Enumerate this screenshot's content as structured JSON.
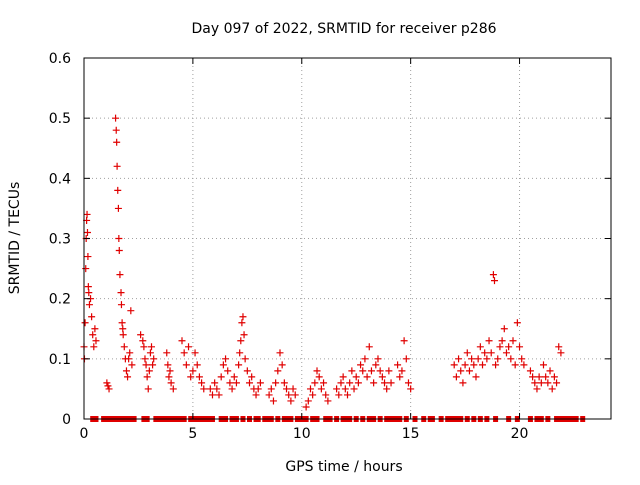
{
  "chart_data": {
    "type": "scatter",
    "title": "Day 097 of 2022, SRMTID for receiver p286",
    "xlabel": "GPS time / hours",
    "ylabel": "SRMTID / TECUs",
    "xlim": [
      0,
      24.2
    ],
    "ylim": [
      0,
      0.6
    ],
    "xticks": [
      0,
      5,
      10,
      15,
      20
    ],
    "yticks": [
      0,
      0.1,
      0.2,
      0.3,
      0.4,
      0.5,
      0.6
    ],
    "xtick_labels": [
      "0",
      "5",
      "10",
      "15",
      "20"
    ],
    "ytick_labels": [
      "0",
      "0.1",
      "0.2",
      "0.3",
      "0.4",
      "0.5",
      "0.6"
    ],
    "grid": true,
    "marker": "+",
    "series_color": "#e00000",
    "series": [
      {
        "name": "SRMTID",
        "points": [
          [
            0.0,
            0.12
          ],
          [
            0.02,
            0.1
          ],
          [
            0.05,
            0.16
          ],
          [
            0.08,
            0.25
          ],
          [
            0.1,
            0.3
          ],
          [
            0.12,
            0.33
          ],
          [
            0.14,
            0.34
          ],
          [
            0.16,
            0.31
          ],
          [
            0.18,
            0.27
          ],
          [
            0.2,
            0.22
          ],
          [
            0.22,
            0.21
          ],
          [
            0.25,
            0.19
          ],
          [
            0.3,
            0.2
          ],
          [
            0.35,
            0.17
          ],
          [
            0.4,
            0.14
          ],
          [
            0.45,
            0.12
          ],
          [
            0.5,
            0.15
          ],
          [
            0.55,
            0.13
          ],
          [
            1.05,
            0.06
          ],
          [
            1.1,
            0.055
          ],
          [
            1.15,
            0.05
          ],
          [
            1.45,
            0.5
          ],
          [
            1.48,
            0.48
          ],
          [
            1.5,
            0.46
          ],
          [
            1.52,
            0.42
          ],
          [
            1.55,
            0.38
          ],
          [
            1.58,
            0.35
          ],
          [
            1.6,
            0.3
          ],
          [
            1.62,
            0.28
          ],
          [
            1.65,
            0.24
          ],
          [
            1.7,
            0.21
          ],
          [
            1.72,
            0.19
          ],
          [
            1.75,
            0.16
          ],
          [
            1.78,
            0.15
          ],
          [
            1.8,
            0.14
          ],
          [
            1.85,
            0.12
          ],
          [
            1.9,
            0.1
          ],
          [
            1.95,
            0.08
          ],
          [
            2.0,
            0.07
          ],
          [
            2.05,
            0.1
          ],
          [
            2.1,
            0.11
          ],
          [
            2.15,
            0.18
          ],
          [
            2.2,
            0.09
          ],
          [
            2.6,
            0.14
          ],
          [
            2.7,
            0.13
          ],
          [
            2.75,
            0.12
          ],
          [
            2.8,
            0.1
          ],
          [
            2.85,
            0.09
          ],
          [
            2.9,
            0.07
          ],
          [
            2.95,
            0.05
          ],
          [
            3.0,
            0.08
          ],
          [
            3.05,
            0.11
          ],
          [
            3.1,
            0.12
          ],
          [
            3.15,
            0.09
          ],
          [
            3.2,
            0.1
          ],
          [
            3.8,
            0.11
          ],
          [
            3.85,
            0.09
          ],
          [
            3.9,
            0.07
          ],
          [
            3.95,
            0.08
          ],
          [
            4.0,
            0.06
          ],
          [
            4.1,
            0.05
          ],
          [
            4.5,
            0.13
          ],
          [
            4.6,
            0.11
          ],
          [
            4.7,
            0.09
          ],
          [
            4.8,
            0.12
          ],
          [
            4.9,
            0.07
          ],
          [
            5.0,
            0.08
          ],
          [
            5.1,
            0.11
          ],
          [
            5.2,
            0.09
          ],
          [
            5.3,
            0.07
          ],
          [
            5.4,
            0.06
          ],
          [
            5.5,
            0.05
          ],
          [
            5.8,
            0.05
          ],
          [
            5.9,
            0.04
          ],
          [
            6.0,
            0.06
          ],
          [
            6.1,
            0.05
          ],
          [
            6.2,
            0.04
          ],
          [
            6.3,
            0.07
          ],
          [
            6.4,
            0.09
          ],
          [
            6.5,
            0.1
          ],
          [
            6.6,
            0.08
          ],
          [
            6.7,
            0.06
          ],
          [
            6.8,
            0.05
          ],
          [
            6.9,
            0.07
          ],
          [
            7.0,
            0.06
          ],
          [
            7.1,
            0.09
          ],
          [
            7.15,
            0.11
          ],
          [
            7.2,
            0.13
          ],
          [
            7.25,
            0.16
          ],
          [
            7.3,
            0.17
          ],
          [
            7.35,
            0.14
          ],
          [
            7.4,
            0.1
          ],
          [
            7.5,
            0.08
          ],
          [
            7.6,
            0.06
          ],
          [
            7.7,
            0.07
          ],
          [
            7.8,
            0.05
          ],
          [
            7.9,
            0.04
          ],
          [
            8.0,
            0.05
          ],
          [
            8.1,
            0.06
          ],
          [
            8.5,
            0.04
          ],
          [
            8.6,
            0.05
          ],
          [
            8.7,
            0.03
          ],
          [
            8.8,
            0.06
          ],
          [
            8.9,
            0.08
          ],
          [
            9.0,
            0.11
          ],
          [
            9.1,
            0.09
          ],
          [
            9.2,
            0.06
          ],
          [
            9.3,
            0.05
          ],
          [
            9.4,
            0.04
          ],
          [
            9.5,
            0.03
          ],
          [
            9.6,
            0.05
          ],
          [
            9.7,
            0.04
          ],
          [
            10.2,
            0.02
          ],
          [
            10.3,
            0.03
          ],
          [
            10.4,
            0.05
          ],
          [
            10.5,
            0.04
          ],
          [
            10.6,
            0.06
          ],
          [
            10.7,
            0.08
          ],
          [
            10.8,
            0.07
          ],
          [
            10.9,
            0.05
          ],
          [
            11.0,
            0.06
          ],
          [
            11.1,
            0.04
          ],
          [
            11.2,
            0.03
          ],
          [
            11.6,
            0.05
          ],
          [
            11.7,
            0.04
          ],
          [
            11.8,
            0.06
          ],
          [
            11.9,
            0.07
          ],
          [
            12.0,
            0.05
          ],
          [
            12.1,
            0.04
          ],
          [
            12.2,
            0.06
          ],
          [
            12.3,
            0.08
          ],
          [
            12.4,
            0.05
          ],
          [
            12.5,
            0.07
          ],
          [
            12.6,
            0.06
          ],
          [
            12.7,
            0.09
          ],
          [
            12.8,
            0.08
          ],
          [
            12.9,
            0.1
          ],
          [
            13.0,
            0.07
          ],
          [
            13.1,
            0.12
          ],
          [
            13.2,
            0.08
          ],
          [
            13.3,
            0.06
          ],
          [
            13.4,
            0.09
          ],
          [
            13.5,
            0.1
          ],
          [
            13.6,
            0.08
          ],
          [
            13.7,
            0.07
          ],
          [
            13.8,
            0.06
          ],
          [
            13.9,
            0.05
          ],
          [
            14.0,
            0.08
          ],
          [
            14.1,
            0.06
          ],
          [
            14.4,
            0.09
          ],
          [
            14.5,
            0.07
          ],
          [
            14.6,
            0.08
          ],
          [
            14.7,
            0.13
          ],
          [
            14.8,
            0.1
          ],
          [
            14.9,
            0.06
          ],
          [
            15.0,
            0.05
          ],
          [
            17.0,
            0.09
          ],
          [
            17.1,
            0.07
          ],
          [
            17.2,
            0.1
          ],
          [
            17.3,
            0.08
          ],
          [
            17.4,
            0.06
          ],
          [
            17.5,
            0.09
          ],
          [
            17.6,
            0.11
          ],
          [
            17.7,
            0.08
          ],
          [
            17.8,
            0.1
          ],
          [
            17.9,
            0.09
          ],
          [
            18.0,
            0.07
          ],
          [
            18.1,
            0.1
          ],
          [
            18.2,
            0.12
          ],
          [
            18.3,
            0.09
          ],
          [
            18.4,
            0.11
          ],
          [
            18.5,
            0.1
          ],
          [
            18.6,
            0.13
          ],
          [
            18.7,
            0.11
          ],
          [
            18.8,
            0.24
          ],
          [
            18.85,
            0.23
          ],
          [
            18.9,
            0.09
          ],
          [
            19.0,
            0.1
          ],
          [
            19.1,
            0.12
          ],
          [
            19.2,
            0.13
          ],
          [
            19.3,
            0.15
          ],
          [
            19.4,
            0.11
          ],
          [
            19.5,
            0.12
          ],
          [
            19.6,
            0.1
          ],
          [
            19.7,
            0.13
          ],
          [
            19.8,
            0.09
          ],
          [
            19.9,
            0.16
          ],
          [
            20.0,
            0.12
          ],
          [
            20.1,
            0.1
          ],
          [
            20.2,
            0.09
          ],
          [
            20.5,
            0.08
          ],
          [
            20.6,
            0.07
          ],
          [
            20.7,
            0.06
          ],
          [
            20.8,
            0.05
          ],
          [
            20.9,
            0.07
          ],
          [
            21.0,
            0.06
          ],
          [
            21.1,
            0.09
          ],
          [
            21.2,
            0.07
          ],
          [
            21.3,
            0.06
          ],
          [
            21.4,
            0.08
          ],
          [
            21.5,
            0.05
          ],
          [
            21.6,
            0.07
          ],
          [
            21.7,
            0.06
          ],
          [
            21.8,
            0.12
          ],
          [
            21.9,
            0.11
          ]
        ],
        "zeros": [
          0.4,
          0.55,
          0.9,
          1.0,
          1.1,
          1.3,
          1.4,
          1.55,
          1.75,
          1.85,
          2.0,
          2.2,
          2.3,
          2.75,
          2.9,
          3.3,
          3.35,
          3.5,
          3.6,
          3.75,
          3.9,
          4.1,
          4.25,
          4.3,
          4.5,
          4.6,
          4.9,
          5.1,
          5.3,
          5.5,
          5.7,
          5.9,
          6.3,
          6.5,
          6.8,
          7.0,
          7.3,
          7.6,
          7.9,
          8.0,
          8.3,
          8.5,
          8.6,
          8.9,
          9.2,
          9.35,
          9.5,
          9.8,
          9.95,
          10.0,
          10.2,
          10.5,
          10.7,
          11.1,
          11.3,
          11.6,
          11.9,
          12.0,
          12.2,
          12.5,
          12.8,
          13.1,
          13.3,
          13.6,
          13.9,
          14.1,
          14.3,
          14.5,
          14.8,
          15.2,
          15.6,
          15.9,
          16.0,
          16.4,
          16.7,
          16.9,
          17.1,
          17.3,
          17.6,
          17.9,
          18.2,
          18.5,
          18.9,
          19.5,
          19.9,
          20.5,
          20.8,
          21.0,
          21.3,
          21.7,
          21.8,
          22.0,
          22.2,
          22.4,
          22.6,
          22.9
        ]
      }
    ]
  }
}
